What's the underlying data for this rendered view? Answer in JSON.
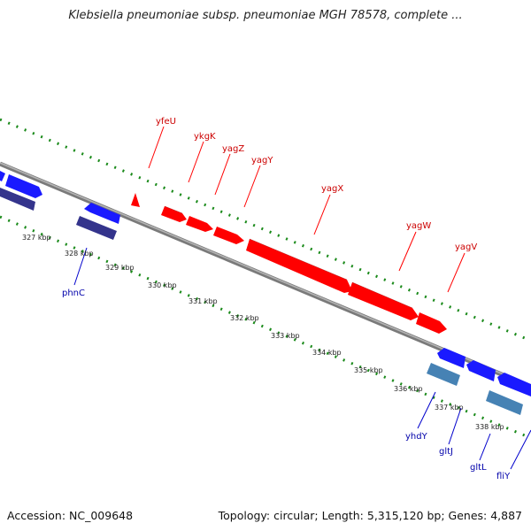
{
  "title": "Klebsiella pneumoniae subsp. pneumoniae MGH 78578, complete ...",
  "footer": {
    "accession": "Accession: NC_009648",
    "summary": "Topology: circular; Length: 5,315,120 bp; Genes: 4,887"
  },
  "colors": {
    "forward_gene": "#ff0000",
    "reverse_gene": "#1a1aff",
    "reverse_gene_alt": "#2f2f8a",
    "rna_gene": "#4682b4",
    "backbone": "#808080",
    "tick_ring": "#1a8a1a",
    "label_forward": "#cc0000",
    "label_reverse": "#0000aa",
    "kbp_label": "#222222"
  },
  "scale": {
    "ticks": [
      "327 kbp",
      "328 kbp",
      "329 kbp",
      "330 kbp",
      "331 kbp",
      "332 kbp",
      "333 kbp",
      "334 kbp",
      "335 kbp",
      "336 kbp",
      "337 kbp",
      "338 kbp"
    ]
  },
  "forward_labels": [
    "yfeU",
    "ykgK",
    "yagZ",
    "yagY",
    "yagX",
    "yagW",
    "yagV"
  ],
  "reverse_labels": [
    "phnC",
    "yhdY",
    "gltJ",
    "gltL",
    "fliY"
  ]
}
